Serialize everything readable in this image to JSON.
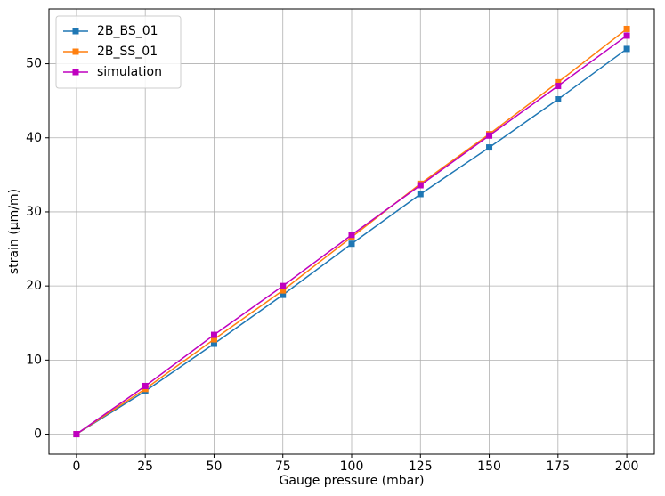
{
  "chart_data": {
    "type": "line",
    "x_label": "Gauge pressure (mbar)",
    "y_label": "strain (μm/m)",
    "x": [
      0,
      25,
      50,
      75,
      100,
      125,
      150,
      175,
      200
    ],
    "series": [
      {
        "name": "2B_BS_01",
        "color": "#1f77b4",
        "values": [
          0,
          5.8,
          12.2,
          18.8,
          25.7,
          32.4,
          38.7,
          45.2,
          52.0
        ]
      },
      {
        "name": "2B_SS_01",
        "color": "#ff7f0e",
        "values": [
          0,
          6.1,
          12.8,
          19.4,
          26.6,
          33.8,
          40.5,
          47.5,
          54.7
        ]
      },
      {
        "name": "simulation",
        "color": "#bf00bf",
        "values": [
          0,
          6.5,
          13.4,
          20.0,
          26.9,
          33.6,
          40.3,
          47.0,
          53.8
        ]
      }
    ],
    "xlim": [
      -10,
      210
    ],
    "xticks": [
      0,
      25,
      50,
      75,
      100,
      125,
      150,
      175,
      200
    ],
    "ylim": [
      -2.7,
      57.4
    ],
    "yticks": [
      0,
      10,
      20,
      30,
      40,
      50
    ],
    "grid": true,
    "legend": "upper-left",
    "marker": "square"
  }
}
